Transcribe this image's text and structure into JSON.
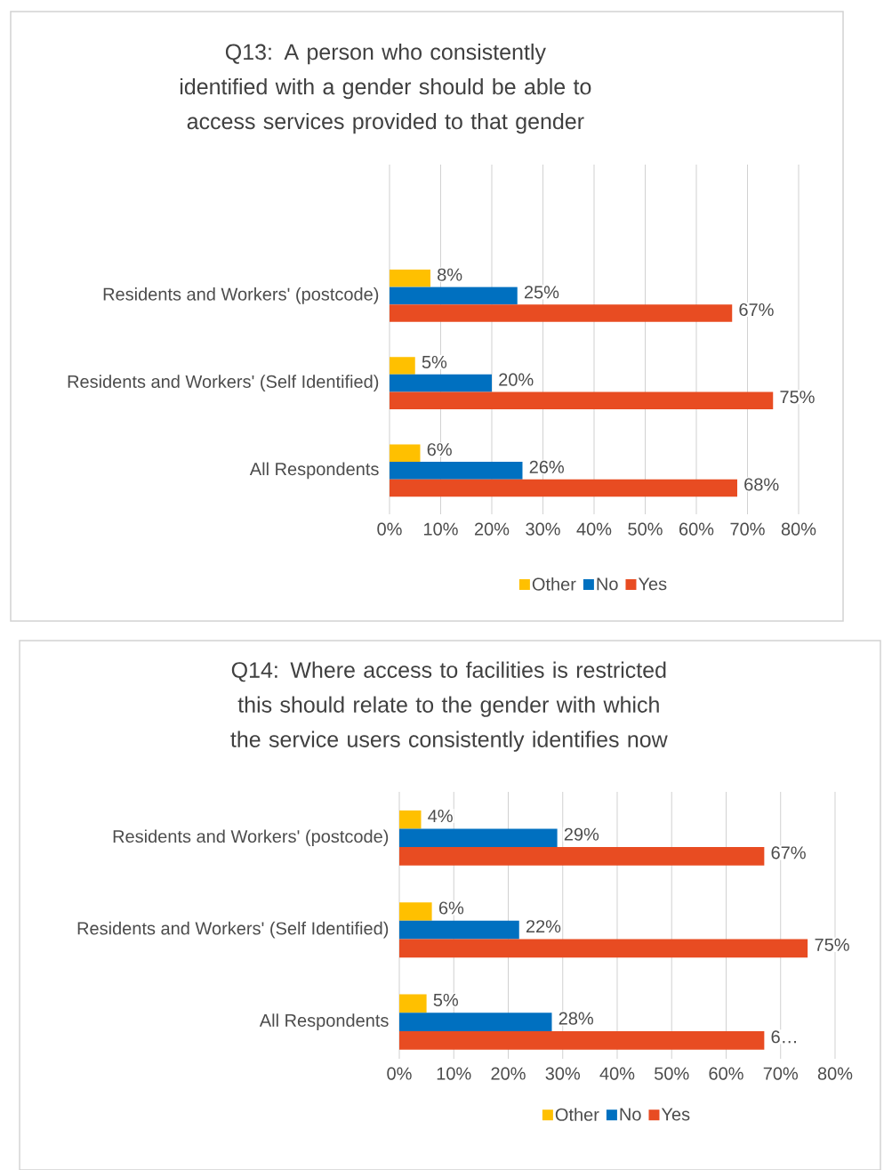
{
  "chart_data": [
    {
      "type": "bar",
      "orientation": "horizontal",
      "title": "Q13: A person who consistently identified with a gender should be able to access services provided to that gender",
      "categories": [
        "Residents and Workers' (postcode)",
        "Residents and Workers' (Self Identified)",
        "All Respondents"
      ],
      "series": [
        {
          "name": "Other",
          "color": "#ffc000",
          "values": [
            8,
            5,
            6
          ],
          "value_labels": [
            "8%",
            "5%",
            "6%"
          ]
        },
        {
          "name": "No",
          "color": "#0070c0",
          "values": [
            25,
            20,
            26
          ],
          "value_labels": [
            "25%",
            "20%",
            "26%"
          ]
        },
        {
          "name": "Yes",
          "color": "#e84c22",
          "values": [
            67,
            75,
            68
          ],
          "value_labels": [
            "67%",
            "75%",
            "68%"
          ]
        }
      ],
      "xlim": [
        0,
        80
      ],
      "xticks": [
        {
          "value": 0,
          "label": "0%"
        },
        {
          "value": 10,
          "label": "10%"
        },
        {
          "value": 20,
          "label": "20%"
        },
        {
          "value": 30,
          "label": "30%"
        },
        {
          "value": 40,
          "label": "40%"
        },
        {
          "value": 50,
          "label": "50%"
        },
        {
          "value": 60,
          "label": "60%"
        },
        {
          "value": 70,
          "label": "70%"
        },
        {
          "value": 80,
          "label": "80%"
        }
      ],
      "grid": "x",
      "legend": "bottom"
    },
    {
      "type": "bar",
      "orientation": "horizontal",
      "title": "Q14: Where access to facilities is restricted this should relate to the gender with which the service users consistently identifies now",
      "categories": [
        "Residents and Workers' (postcode)",
        "Residents and Workers' (Self Identified)",
        "All Respondents"
      ],
      "series": [
        {
          "name": "Other",
          "color": "#ffc000",
          "values": [
            4,
            6,
            5
          ],
          "value_labels": [
            "4%",
            "6%",
            "5%"
          ]
        },
        {
          "name": "No",
          "color": "#0070c0",
          "values": [
            29,
            22,
            28
          ],
          "value_labels": [
            "29%",
            "22%",
            "28%"
          ]
        },
        {
          "name": "Yes",
          "color": "#e84c22",
          "values": [
            67,
            75,
            67
          ],
          "value_labels": [
            "67%",
            "75%",
            "6…"
          ]
        }
      ],
      "xlim": [
        0,
        80
      ],
      "xticks": [
        {
          "value": 0,
          "label": "0%"
        },
        {
          "value": 10,
          "label": "10%"
        },
        {
          "value": 20,
          "label": "20%"
        },
        {
          "value": 30,
          "label": "30%"
        },
        {
          "value": 40,
          "label": "40%"
        },
        {
          "value": 50,
          "label": "50%"
        },
        {
          "value": 60,
          "label": "60%"
        },
        {
          "value": 70,
          "label": "70%"
        },
        {
          "value": 80,
          "label": "80%"
        }
      ],
      "grid": "x",
      "legend": "bottom"
    }
  ]
}
